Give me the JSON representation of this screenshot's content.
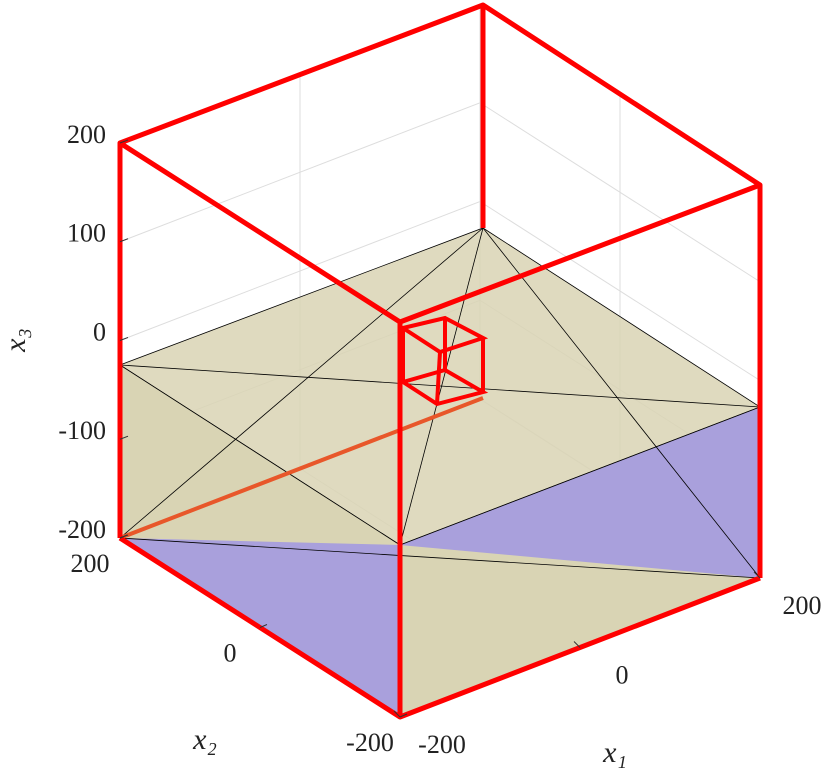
{
  "chart_data": {
    "type": "surface3d",
    "xlabel": "x₁",
    "ylabel": "x₂",
    "zlabel": "x₃",
    "xlim": [
      -200,
      200
    ],
    "ylim": [
      -200,
      200
    ],
    "zlim": [
      -200,
      200
    ],
    "xticks": [
      -200,
      0,
      200
    ],
    "yticks": [
      -200,
      0,
      200
    ],
    "zticks": [
      -200,
      -100,
      0,
      100,
      200
    ],
    "grid": true
  }
}
